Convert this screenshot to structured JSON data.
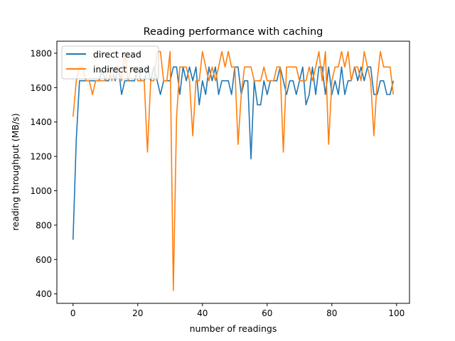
{
  "chart_data": {
    "type": "line",
    "title": "Reading performance with caching",
    "xlabel": "number of readings",
    "ylabel": "reading throughput (MB/s)",
    "xlim": [
      -5,
      104
    ],
    "ylim": [
      345,
      1870
    ],
    "x_ticks": [
      0,
      20,
      40,
      60,
      80,
      100
    ],
    "y_ticks": [
      400,
      600,
      800,
      1000,
      1200,
      1400,
      1600,
      1800
    ],
    "grid": false,
    "legend_position": "top-left",
    "series": [
      {
        "name": "direct read",
        "color": "#1f77b4",
        "values": [
          715,
          1300,
          1640,
          1640,
          1640,
          1640,
          1640,
          1640,
          1640,
          1700,
          1640,
          1640,
          1720,
          1640,
          1720,
          1560,
          1640,
          1640,
          1640,
          1640,
          1720,
          1640,
          1640,
          1720,
          1640,
          1720,
          1640,
          1560,
          1640,
          1640,
          1640,
          1720,
          1720,
          1560,
          1720,
          1640,
          1720,
          1640,
          1720,
          1500,
          1640,
          1560,
          1720,
          1640,
          1720,
          1560,
          1640,
          1640,
          1640,
          1560,
          1720,
          1720,
          1560,
          1640,
          1640,
          1185,
          1640,
          1500,
          1500,
          1640,
          1560,
          1640,
          1640,
          1640,
          1720,
          1640,
          1560,
          1640,
          1640,
          1560,
          1640,
          1720,
          1500,
          1560,
          1720,
          1560,
          1720,
          1720,
          1560,
          1720,
          1560,
          1640,
          1560,
          1720,
          1560,
          1640,
          1640,
          1720,
          1640,
          1720,
          1640,
          1720,
          1720,
          1560,
          1560,
          1640,
          1640,
          1560,
          1560,
          1640
        ]
      },
      {
        "name": "indirect read",
        "color": "#ff7f0e",
        "values": [
          1430,
          1640,
          1720,
          1720,
          1640,
          1640,
          1560,
          1640,
          1640,
          1640,
          1640,
          1720,
          1640,
          1720,
          1720,
          1640,
          1810,
          1640,
          1720,
          1720,
          1640,
          1640,
          1640,
          1225,
          1640,
          1640,
          1810,
          1810,
          1640,
          1640,
          1810,
          420,
          1430,
          1720,
          1720,
          1720,
          1640,
          1320,
          1640,
          1640,
          1810,
          1720,
          1640,
          1720,
          1640,
          1720,
          1810,
          1720,
          1810,
          1720,
          1720,
          1270,
          1560,
          1720,
          1720,
          1720,
          1640,
          1640,
          1640,
          1720,
          1640,
          1640,
          1640,
          1720,
          1720,
          1225,
          1720,
          1720,
          1720,
          1720,
          1640,
          1640,
          1640,
          1720,
          1640,
          1720,
          1810,
          1640,
          1810,
          1270,
          1640,
          1720,
          1720,
          1810,
          1720,
          1810,
          1640,
          1720,
          1720,
          1640,
          1810,
          1720,
          1640,
          1320,
          1640,
          1810,
          1720,
          1720,
          1720,
          1560
        ]
      }
    ]
  }
}
